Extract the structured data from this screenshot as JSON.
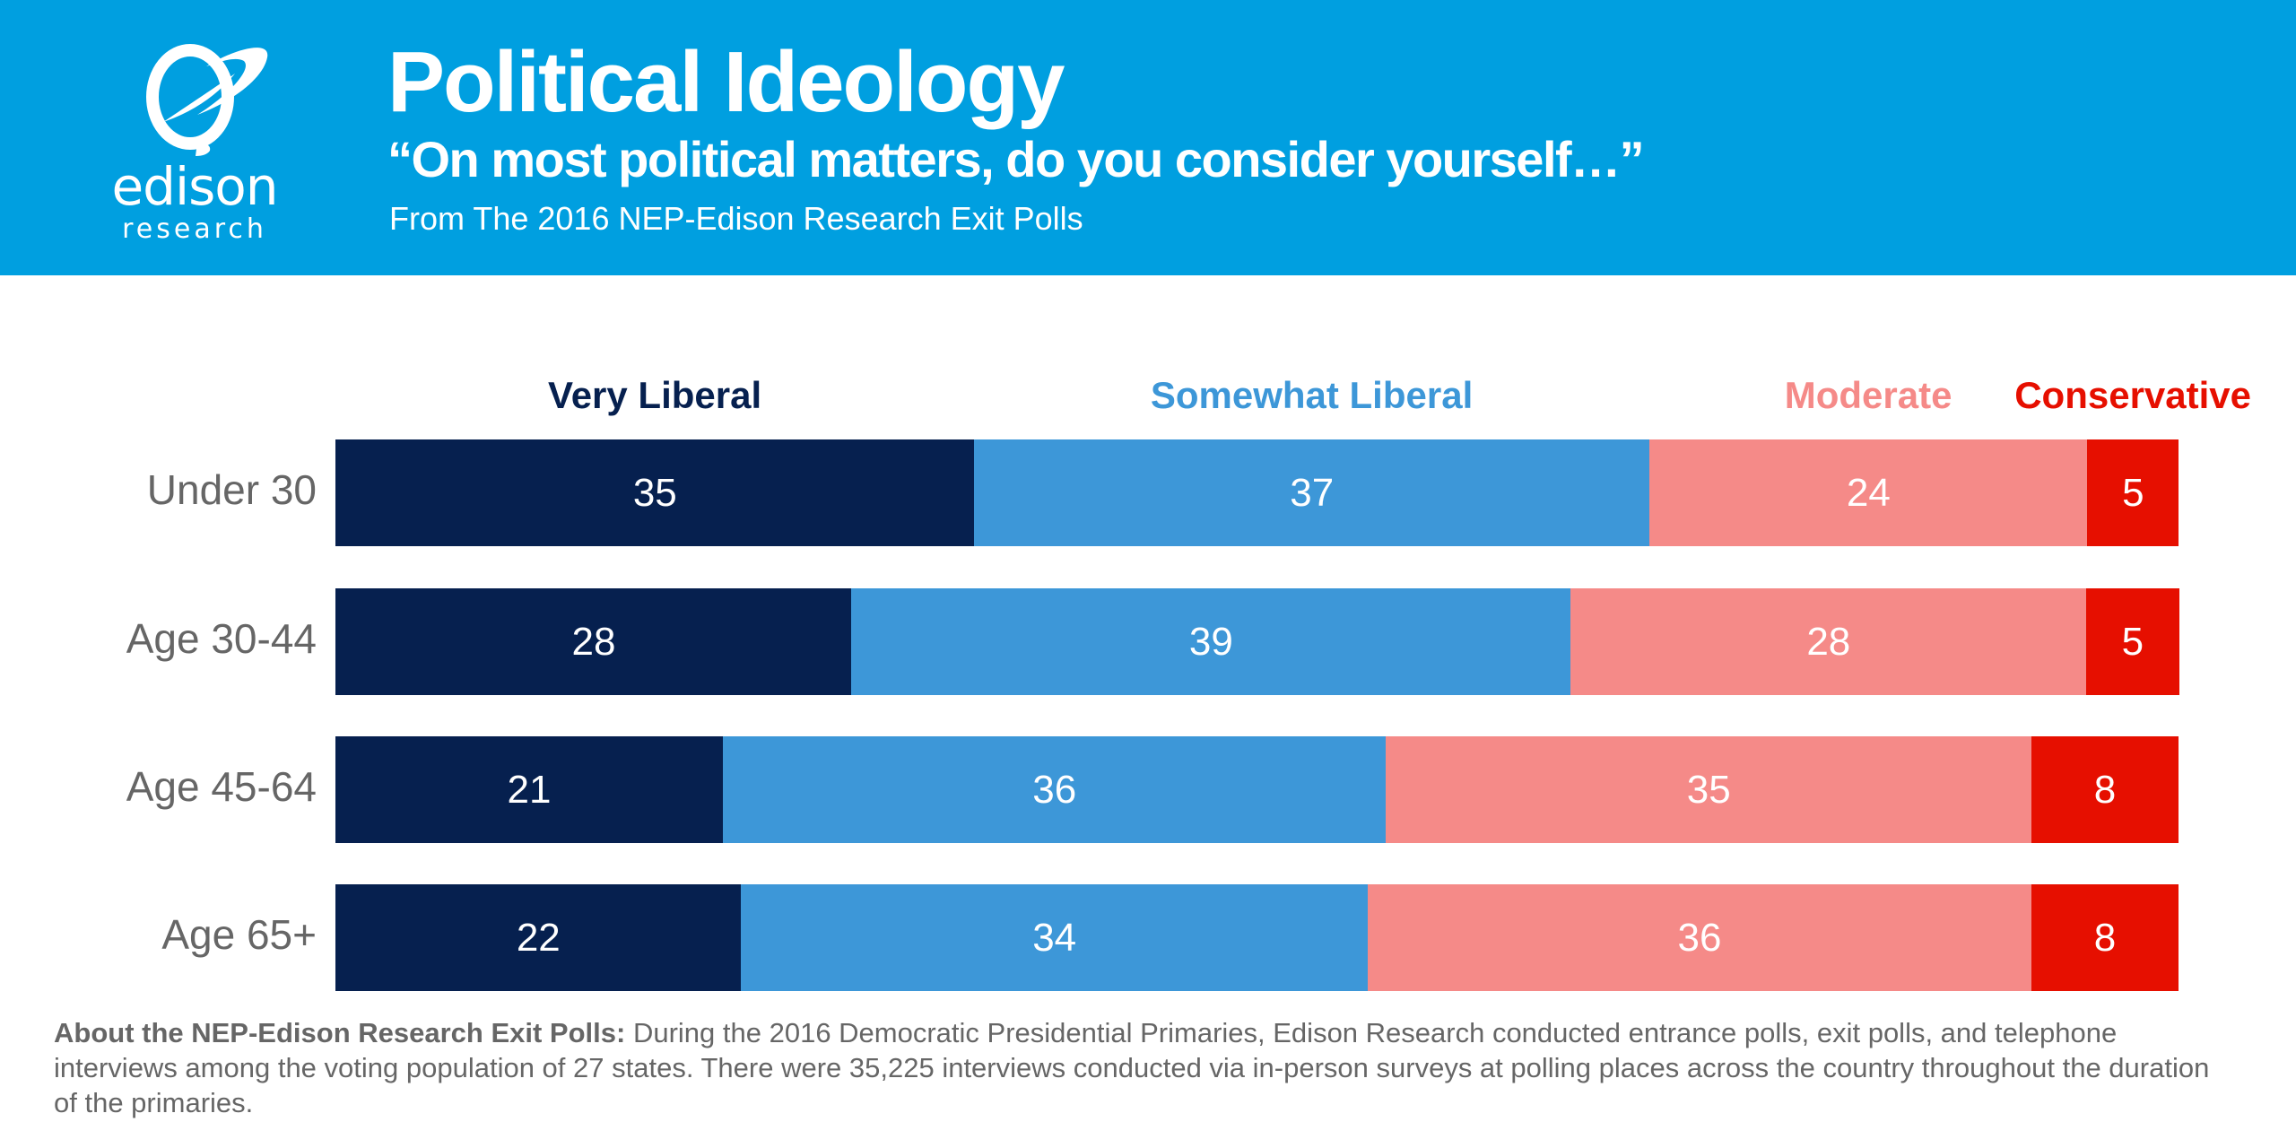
{
  "header": {
    "title": "Political Ideology",
    "subtitle": "“On most political matters, do you consider yourself…”",
    "source": "From The 2016 NEP-Edison Research Exit Polls",
    "logo": {
      "word": "edison",
      "sub": "research",
      "icon": "lightbulb-planet-icon"
    },
    "background_color": "#009FE0"
  },
  "chart_data": {
    "type": "bar",
    "orientation": "horizontal",
    "stacked": true,
    "title": "Political Ideology",
    "subtitle": "“On most political matters, do you consider yourself…”",
    "categories": [
      "Under 30",
      "Age 30-44",
      "Age 45-64",
      "Age 65+"
    ],
    "series": [
      {
        "name": "Very Liberal",
        "color": "#06204F",
        "values": [
          35,
          28,
          21,
          22
        ]
      },
      {
        "name": "Somewhat Liberal",
        "color": "#3D97D8",
        "values": [
          37,
          39,
          36,
          34
        ]
      },
      {
        "name": "Moderate",
        "color": "#F58A88",
        "values": [
          24,
          28,
          35,
          36
        ]
      },
      {
        "name": "Conservative",
        "color": "#E60F00",
        "values": [
          5,
          5,
          8,
          8
        ]
      }
    ],
    "xlabel": "",
    "ylabel": "",
    "unit": "percent",
    "grid": false,
    "legend_placement": "top",
    "data_labels": true
  },
  "footer": {
    "bold": "About the NEP-Edison Research Exit Polls:",
    "text": " During the 2016 Democratic Presidential Primaries, Edison Research conducted entrance polls, exit polls, and telephone interviews among the voting population of 27 states. There were 35,225 interviews conducted via in-person surveys at polling places across the country throughout the duration of the primaries."
  }
}
